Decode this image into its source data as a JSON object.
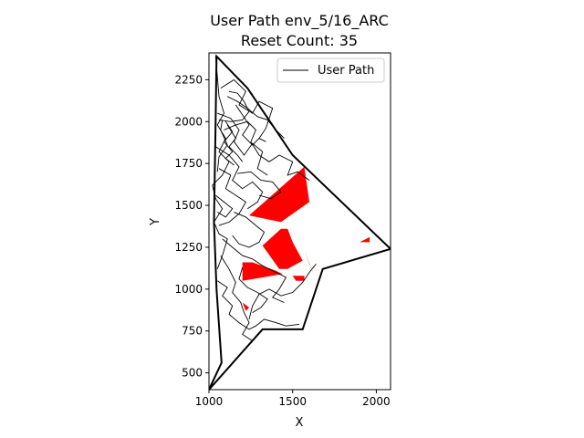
{
  "chart_data": {
    "type": "line",
    "title": "User Path env_5/16_ARC",
    "subtitle": "Reset Count: 35",
    "xlabel": "X",
    "ylabel": "Y",
    "xlim": [
      1000,
      2085
    ],
    "ylim": [
      400,
      2410
    ],
    "xticks": [
      1000,
      1500,
      2000
    ],
    "yticks": [
      500,
      750,
      1000,
      1250,
      1500,
      1750,
      2000,
      2250
    ],
    "legend": {
      "position": "top-right",
      "entries": [
        {
          "label": "User Path",
          "color": "#000000"
        }
      ]
    },
    "colors": {
      "boundary": "#000000",
      "obstacle": "#ff0000",
      "path": "#000000"
    },
    "boundary": [
      [
        1000,
        400
      ],
      [
        1075,
        560
      ],
      [
        1045,
        1000
      ],
      [
        1030,
        1400
      ],
      [
        1040,
        2000
      ],
      [
        1045,
        2390
      ],
      [
        1230,
        2200
      ],
      [
        1500,
        1800
      ],
      [
        2085,
        1240
      ],
      [
        1680,
        1120
      ],
      [
        1560,
        760
      ],
      [
        1320,
        760
      ],
      [
        1000,
        400
      ]
    ],
    "obstacles": [
      [
        [
          1240,
          1440
        ],
        [
          1430,
          1400
        ],
        [
          1600,
          1520
        ],
        [
          1570,
          1730
        ]
      ],
      [
        [
          1320,
          1260
        ],
        [
          1430,
          1360
        ],
        [
          1470,
          1360
        ],
        [
          1500,
          1280
        ],
        [
          1560,
          1170
        ],
        [
          1470,
          1120
        ],
        [
          1420,
          1120
        ]
      ],
      [
        [
          1200,
          1050
        ],
        [
          1200,
          1160
        ],
        [
          1260,
          1160
        ],
        [
          1400,
          1110
        ],
        [
          1440,
          1090
        ]
      ],
      [
        [
          1570,
          1230
        ],
        [
          1600,
          1150
        ],
        [
          1630,
          1080
        ]
      ],
      [
        [
          1500,
          1080
        ],
        [
          1570,
          1080
        ],
        [
          1570,
          1050
        ],
        [
          1520,
          1050
        ]
      ],
      [
        [
          1900,
          1280
        ],
        [
          1960,
          1310
        ],
        [
          1960,
          1280
        ]
      ],
      [
        [
          1200,
          920
        ],
        [
          1220,
          870
        ],
        [
          1240,
          890
        ]
      ]
    ],
    "series": [
      {
        "name": "User Path",
        "segments": [
          [
            [
              1040,
              2390
            ],
            [
              1060,
              2150
            ],
            [
              1090,
              2050
            ],
            [
              1050,
              1980
            ],
            [
              1100,
              1900
            ],
            [
              1060,
              1820
            ],
            [
              1120,
              1760
            ],
            [
              1080,
              1680
            ],
            [
              1020,
              1620
            ],
            [
              1040,
              1540
            ],
            [
              1080,
              1480
            ],
            [
              1030,
              1400
            ],
            [
              1060,
              1330
            ],
            [
              1110,
              1300
            ],
            [
              1080,
              1200
            ],
            [
              1050,
              1120
            ]
          ],
          [
            [
              1070,
              2200
            ],
            [
              1150,
              2250
            ],
            [
              1220,
              2180
            ],
            [
              1180,
              2100
            ],
            [
              1260,
              2050
            ],
            [
              1300,
              2120
            ],
            [
              1380,
              2080
            ],
            [
              1340,
              1960
            ],
            [
              1300,
              1900
            ]
          ],
          [
            [
              1050,
              2050
            ],
            [
              1130,
              2020
            ],
            [
              1180,
              1950
            ],
            [
              1150,
              1880
            ],
            [
              1210,
              1800
            ],
            [
              1260,
              1870
            ],
            [
              1320,
              1820
            ],
            [
              1290,
              1720
            ],
            [
              1350,
              1680
            ]
          ],
          [
            [
              1090,
              1950
            ],
            [
              1160,
              1980
            ],
            [
              1230,
              2000
            ],
            [
              1280,
              1950
            ],
            [
              1250,
              1880
            ],
            [
              1300,
              1800
            ],
            [
              1360,
              1760
            ],
            [
              1420,
              1800
            ],
            [
              1500,
              1760
            ],
            [
              1470,
              1680
            ],
            [
              1530,
              1700
            ],
            [
              1600,
              1650
            ]
          ],
          [
            [
              1040,
              1850
            ],
            [
              1120,
              1800
            ],
            [
              1180,
              1730
            ],
            [
              1140,
              1650
            ],
            [
              1200,
              1600
            ],
            [
              1260,
              1640
            ],
            [
              1320,
              1580
            ],
            [
              1290,
              1520
            ],
            [
              1230,
              1480
            ]
          ],
          [
            [
              1060,
              1720
            ],
            [
              1130,
              1680
            ],
            [
              1100,
              1600
            ],
            [
              1160,
              1560
            ],
            [
              1220,
              1520
            ],
            [
              1180,
              1450
            ],
            [
              1120,
              1400
            ],
            [
              1060,
              1380
            ]
          ],
          [
            [
              1080,
              1300
            ],
            [
              1140,
              1250
            ],
            [
              1200,
              1200
            ],
            [
              1260,
              1180
            ],
            [
              1320,
              1140
            ],
            [
              1400,
              1100
            ],
            [
              1460,
              1070
            ],
            [
              1420,
              1000
            ],
            [
              1380,
              950
            ],
            [
              1450,
              920
            ]
          ],
          [
            [
              1070,
              1200
            ],
            [
              1120,
              1120
            ],
            [
              1160,
              1040
            ],
            [
              1140,
              980
            ],
            [
              1190,
              920
            ],
            [
              1210,
              860
            ],
            [
              1240,
              800
            ],
            [
              1200,
              730
            ],
            [
              1260,
              690
            ]
          ],
          [
            [
              1050,
              1050
            ],
            [
              1110,
              1010
            ],
            [
              1080,
              960
            ],
            [
              1140,
              900
            ],
            [
              1120,
              850
            ],
            [
              1180,
              800
            ],
            [
              1240,
              760
            ],
            [
              1280,
              780
            ],
            [
              1330,
              820
            ],
            [
              1400,
              800
            ],
            [
              1460,
              780
            ],
            [
              1540,
              790
            ]
          ],
          [
            [
              1240,
              820
            ],
            [
              1260,
              900
            ],
            [
              1300,
              970
            ],
            [
              1360,
              1000
            ],
            [
              1430,
              960
            ],
            [
              1500,
              980
            ],
            [
              1560,
              1040
            ],
            [
              1600,
              1100
            ],
            [
              1640,
              1150
            ]
          ],
          [
            [
              1080,
              2010
            ],
            [
              1070,
              1950
            ],
            [
              1110,
              1860
            ],
            [
              1060,
              1790
            ],
            [
              1050,
              1700
            ]
          ],
          [
            [
              1100,
              2000
            ],
            [
              1140,
              1940
            ],
            [
              1090,
              1880
            ],
            [
              1140,
              1820
            ],
            [
              1100,
              1780
            ],
            [
              1150,
              1740
            ]
          ],
          [
            [
              1110,
              1980
            ],
            [
              1160,
              1900
            ],
            [
              1120,
              1850
            ],
            [
              1170,
              1800
            ],
            [
              1200,
              1760
            ]
          ],
          [
            [
              1160,
              2100
            ],
            [
              1200,
              2040
            ],
            [
              1240,
              1980
            ],
            [
              1200,
              1920
            ],
            [
              1260,
              1860
            ],
            [
              1300,
              1900
            ],
            [
              1340,
              1880
            ]
          ],
          [
            [
              1110,
              2150
            ],
            [
              1170,
              2120
            ],
            [
              1230,
              2080
            ],
            [
              1290,
              2030
            ],
            [
              1350,
              2010
            ],
            [
              1400,
              1950
            ],
            [
              1450,
              1900
            ]
          ],
          [
            [
              1170,
              1690
            ],
            [
              1250,
              1700
            ],
            [
              1310,
              1650
            ],
            [
              1380,
              1640
            ],
            [
              1430,
              1580
            ],
            [
              1370,
              1540
            ],
            [
              1300,
              1560
            ]
          ],
          [
            [
              1150,
              1460
            ],
            [
              1220,
              1430
            ],
            [
              1280,
              1380
            ],
            [
              1330,
              1340
            ],
            [
              1300,
              1280
            ],
            [
              1240,
              1250
            ],
            [
              1180,
              1270
            ],
            [
              1140,
              1320
            ]
          ],
          [
            [
              1200,
              1130
            ],
            [
              1180,
              1060
            ],
            [
              1230,
              1010
            ],
            [
              1290,
              980
            ],
            [
              1350,
              940
            ],
            [
              1310,
              890
            ],
            [
              1260,
              860
            ]
          ],
          [
            [
              1040,
              1560
            ],
            [
              1090,
              1520
            ],
            [
              1140,
              1480
            ],
            [
              1100,
              1430
            ],
            [
              1050,
              1460
            ]
          ],
          [
            [
              1060,
              2010
            ],
            [
              1130,
              2000
            ],
            [
              1200,
              2010
            ],
            [
              1240,
              2060
            ],
            [
              1210,
              2120
            ],
            [
              1170,
              2170
            ],
            [
              1120,
              2180
            ]
          ]
        ]
      }
    ]
  }
}
